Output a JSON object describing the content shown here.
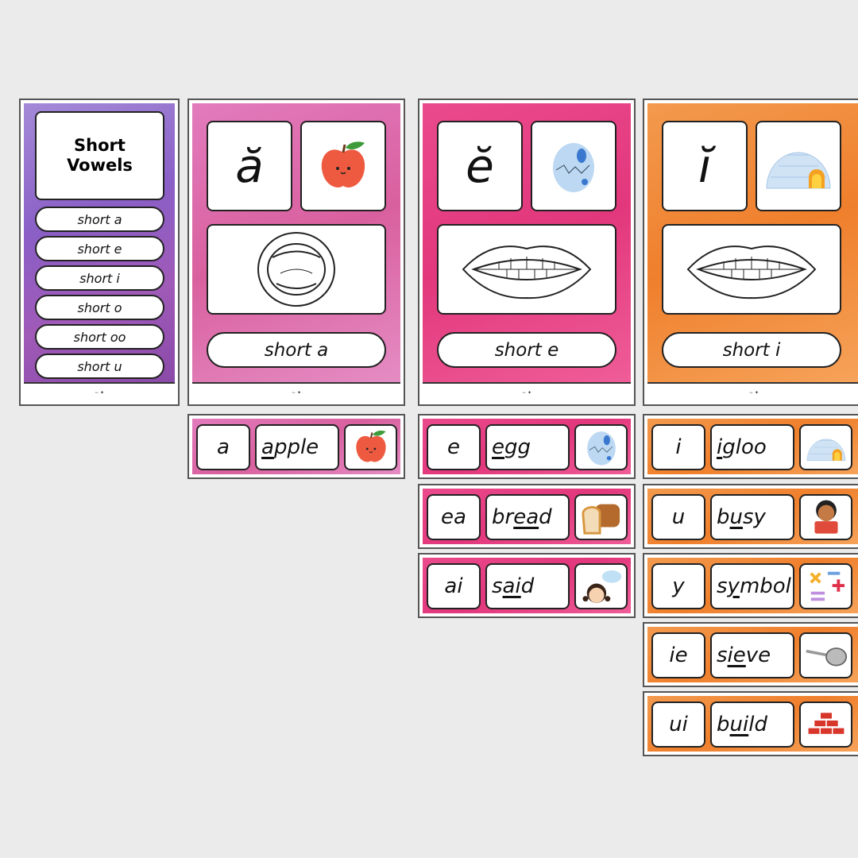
{
  "colors": {
    "background": "#ebebeb",
    "purple": "#8a5fc6",
    "pink_light": "#d9609f",
    "pink_dark": "#e2377c",
    "orange": "#ef7f2c"
  },
  "footer_logo": "Gifted and Talented Teacher",
  "index_card": {
    "title_line1": "Short",
    "title_line2": "Vowels",
    "items": [
      "short a",
      "short e",
      "short i",
      "short o",
      "short oo",
      "short u"
    ]
  },
  "vowel_cards": [
    {
      "symbol": "ă",
      "image": "apple-icon",
      "mouth": "open-mouth-icon",
      "label": "short a"
    },
    {
      "symbol": "ĕ",
      "image": "egg-icon",
      "mouth": "smile-mouth-icon",
      "label": "short e"
    },
    {
      "symbol": "ĭ",
      "image": "igloo-icon",
      "mouth": "smile-mouth-icon",
      "label": "short i"
    }
  ],
  "strips": [
    [
      {
        "grapheme": "a",
        "pre": "",
        "hl": "a",
        "post": "pple",
        "image": "apple-icon"
      }
    ],
    [
      {
        "grapheme": "e",
        "pre": "",
        "hl": "e",
        "post": "gg",
        "image": "egg-icon"
      },
      {
        "grapheme": "ea",
        "pre": "br",
        "hl": "ea",
        "post": "d",
        "image": "bread-icon"
      },
      {
        "grapheme": "ai",
        "pre": "s",
        "hl": "ai",
        "post": "d",
        "image": "girl-talking-icon"
      }
    ],
    [
      {
        "grapheme": "i",
        "pre": "",
        "hl": "i",
        "post": "gloo",
        "image": "igloo-icon"
      },
      {
        "grapheme": "u",
        "pre": "b",
        "hl": "u",
        "post": "sy",
        "image": "boy-reading-icon"
      },
      {
        "grapheme": "y",
        "pre": "s",
        "hl": "y",
        "post": "mbol",
        "image": "math-symbols-icon"
      },
      {
        "grapheme": "ie",
        "pre": "s",
        "hl": "ie",
        "post": "ve",
        "image": "sieve-icon"
      },
      {
        "grapheme": "ui",
        "pre": "b",
        "hl": "ui",
        "post": "ld",
        "image": "bricks-icon"
      }
    ]
  ]
}
